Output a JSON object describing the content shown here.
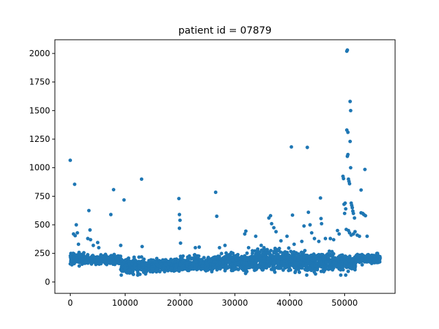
{
  "chart_data": {
    "type": "scatter",
    "title": "patient id = 07879",
    "xlabel": "",
    "ylabel": "",
    "xlim": [
      -2800,
      59200
    ],
    "ylim": [
      -100,
      2120
    ],
    "xticks": [
      0,
      10000,
      20000,
      30000,
      40000,
      50000
    ],
    "yticks": [
      0,
      250,
      500,
      750,
      1000,
      1250,
      1500,
      1750,
      2000
    ],
    "grid": false,
    "marker_color": "#1f77b4",
    "series": [
      {
        "name": "",
        "points": [
          [
            0,
            1065
          ],
          [
            800,
            855
          ],
          [
            600,
            420
          ],
          [
            900,
            405
          ],
          [
            1100,
            500
          ],
          [
            1300,
            430
          ],
          [
            1500,
            330
          ],
          [
            3200,
            380
          ],
          [
            3400,
            625
          ],
          [
            3600,
            455
          ],
          [
            3700,
            370
          ],
          [
            4200,
            320
          ],
          [
            5000,
            345
          ],
          [
            5200,
            300
          ],
          [
            7400,
            590
          ],
          [
            7900,
            808
          ],
          [
            9200,
            320
          ],
          [
            9800,
            718
          ],
          [
            13000,
            900
          ],
          [
            13100,
            310
          ],
          [
            19800,
            730
          ],
          [
            19900,
            590
          ],
          [
            20000,
            540
          ],
          [
            19900,
            470
          ],
          [
            20100,
            340
          ],
          [
            22800,
            300
          ],
          [
            23500,
            305
          ],
          [
            26500,
            785
          ],
          [
            26700,
            575
          ],
          [
            27200,
            300
          ],
          [
            28200,
            320
          ],
          [
            31800,
            420
          ],
          [
            32000,
            445
          ],
          [
            32500,
            300
          ],
          [
            33800,
            400
          ],
          [
            34800,
            320
          ],
          [
            35300,
            300
          ],
          [
            36200,
            560
          ],
          [
            36500,
            580
          ],
          [
            36700,
            510
          ],
          [
            37100,
            475
          ],
          [
            37500,
            440
          ],
          [
            38400,
            360
          ],
          [
            39500,
            400
          ],
          [
            40300,
            1182
          ],
          [
            40500,
            585
          ],
          [
            40800,
            330
          ],
          [
            42200,
            355
          ],
          [
            42600,
            490
          ],
          [
            43200,
            1178
          ],
          [
            43400,
            610
          ],
          [
            43700,
            500
          ],
          [
            44000,
            430
          ],
          [
            44500,
            380
          ],
          [
            45300,
            355
          ],
          [
            45600,
            735
          ],
          [
            45700,
            555
          ],
          [
            45800,
            510
          ],
          [
            46500,
            380
          ],
          [
            47400,
            380
          ],
          [
            48000,
            370
          ],
          [
            48700,
            450
          ],
          [
            49000,
            420
          ],
          [
            49700,
            925
          ],
          [
            49800,
            905
          ],
          [
            49900,
            680
          ],
          [
            50000,
            600
          ],
          [
            50100,
            690
          ],
          [
            50200,
            640
          ],
          [
            50300,
            460
          ],
          [
            50400,
            2020
          ],
          [
            50500,
            2030
          ],
          [
            50400,
            1330
          ],
          [
            50600,
            1310
          ],
          [
            50500,
            1100
          ],
          [
            50600,
            1115
          ],
          [
            50700,
            900
          ],
          [
            50800,
            880
          ],
          [
            50900,
            860
          ],
          [
            51000,
            1580
          ],
          [
            51100,
            1500
          ],
          [
            51000,
            1230
          ],
          [
            51100,
            1000
          ],
          [
            51200,
            690
          ],
          [
            51300,
            670
          ],
          [
            51400,
            650
          ],
          [
            51500,
            620
          ],
          [
            51600,
            600
          ],
          [
            51800,
            560
          ],
          [
            50700,
            450
          ],
          [
            50900,
            430
          ],
          [
            51200,
            410
          ],
          [
            51600,
            420
          ],
          [
            51900,
            440
          ],
          [
            52300,
            410
          ],
          [
            52700,
            400
          ],
          [
            53000,
            605
          ],
          [
            53300,
            600
          ],
          [
            53500,
            590
          ],
          [
            53800,
            580
          ],
          [
            53000,
            805
          ],
          [
            53700,
            985
          ],
          [
            54100,
            400
          ],
          [
            100,
            180
          ],
          [
            300,
            150
          ],
          [
            500,
            250
          ],
          [
            1800,
            240
          ],
          [
            2400,
            200
          ],
          [
            2900,
            170
          ],
          [
            3900,
            180
          ],
          [
            5600,
            160
          ],
          [
            6200,
            200
          ],
          [
            6800,
            170
          ],
          [
            7800,
            190
          ],
          [
            8700,
            200
          ],
          [
            9300,
            60
          ],
          [
            10400,
            80
          ],
          [
            11900,
            120
          ],
          [
            12300,
            60
          ],
          [
            14600,
            90
          ],
          [
            15800,
            110
          ],
          [
            17200,
            90
          ],
          [
            18500,
            120
          ],
          [
            21600,
            100
          ],
          [
            24100,
            140
          ],
          [
            25800,
            90
          ],
          [
            27800,
            130
          ],
          [
            29400,
            100
          ],
          [
            31200,
            130
          ],
          [
            33900,
            110
          ],
          [
            35800,
            140
          ],
          [
            37900,
            120
          ],
          [
            39800,
            100
          ],
          [
            41600,
            110
          ],
          [
            43100,
            60
          ],
          [
            44700,
            70
          ],
          [
            46200,
            90
          ],
          [
            47800,
            120
          ],
          [
            49300,
            60
          ],
          [
            50200,
            60
          ],
          [
            51700,
            130
          ],
          [
            53200,
            150
          ],
          [
            54600,
            190
          ],
          [
            55400,
            230
          ],
          [
            56000,
            250
          ]
        ],
        "bands": [
          {
            "x": [
              0,
              2500
            ],
            "y_low": 130,
            "y_high": 280
          },
          {
            "x": [
              2500,
              9200
            ],
            "y_low": 140,
            "y_high": 250
          },
          {
            "x": [
              9200,
              13000
            ],
            "y_low": 50,
            "y_high": 240
          },
          {
            "x": [
              13000,
              19000
            ],
            "y_low": 60,
            "y_high": 220
          },
          {
            "x": [
              19000,
              26000
            ],
            "y_low": 70,
            "y_high": 250
          },
          {
            "x": [
              26000,
              33000
            ],
            "y_low": 60,
            "y_high": 280
          },
          {
            "x": [
              33000,
              40000
            ],
            "y_low": 70,
            "y_high": 320
          },
          {
            "x": [
              40000,
              48000
            ],
            "y_low": 60,
            "y_high": 290
          },
          {
            "x": [
              48000,
              52000
            ],
            "y_low": 80,
            "y_high": 260
          },
          {
            "x": [
              52000,
              56500
            ],
            "y_low": 150,
            "y_high": 260
          }
        ]
      }
    ]
  }
}
